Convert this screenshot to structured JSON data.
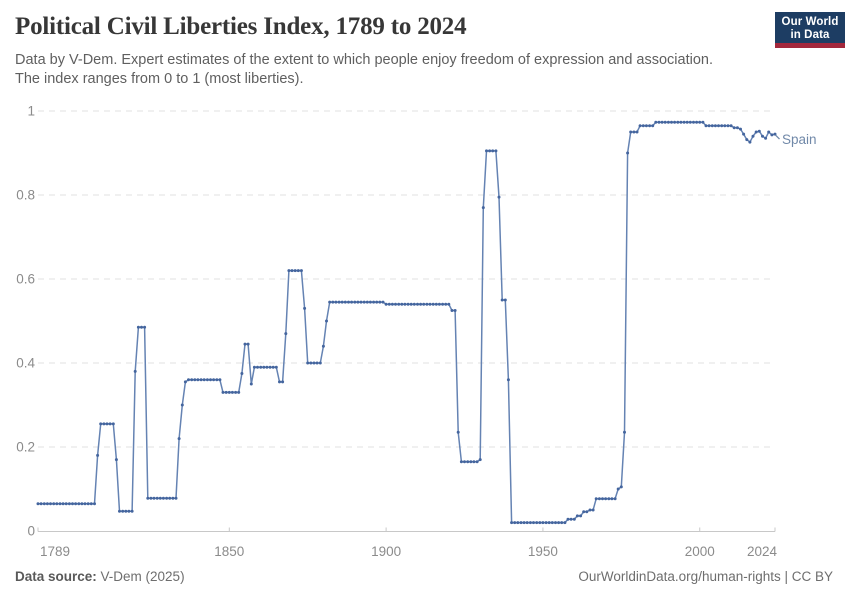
{
  "header": {
    "title": "Political Civil Liberties Index, 1789 to 2024",
    "subtitle_line1": "Data by V-Dem. Expert estimates of the extent to which people enjoy freedom of expression and association.",
    "subtitle_line2": "The index ranges from 0 to 1 (most liberties).",
    "logo_line1": "Our World",
    "logo_line2": "in Data",
    "logo_bg_color": "#1d3d63",
    "logo_stripe_color": "#a3273c"
  },
  "chart_data": {
    "type": "line",
    "title": "Political Civil Liberties Index, 1789 to 2024",
    "series_label": "Spain",
    "start_year": 1789,
    "end_year": 2024,
    "xlim": [
      1789,
      2024
    ],
    "ylim": [
      0,
      1
    ],
    "x_tick_years": [
      1789,
      1850,
      1900,
      1950,
      2000,
      2024
    ],
    "x_tick_labels": [
      "1789",
      "1850",
      "1900",
      "1950",
      "2000",
      "2024"
    ],
    "y_tick_values": [
      0,
      0.2,
      0.4,
      0.6,
      0.8,
      1
    ],
    "y_tick_labels": [
      "0",
      "0.2",
      "0.4",
      "0.6",
      "0.8",
      "1"
    ],
    "grid": "horizontal-dashed",
    "legend_position": "end-of-line",
    "line_color": "#6583b3",
    "marker_color": "#44659e",
    "label_color": "#7189a9",
    "values": [
      0.065,
      0.065,
      0.065,
      0.065,
      0.065,
      0.065,
      0.065,
      0.065,
      0.065,
      0.065,
      0.065,
      0.065,
      0.065,
      0.065,
      0.065,
      0.065,
      0.065,
      0.065,
      0.065,
      0.18,
      0.255,
      0.255,
      0.255,
      0.255,
      0.255,
      0.17,
      0.047,
      0.047,
      0.047,
      0.047,
      0.047,
      0.38,
      0.485,
      0.485,
      0.485,
      0.078,
      0.078,
      0.078,
      0.078,
      0.078,
      0.078,
      0.078,
      0.078,
      0.078,
      0.078,
      0.22,
      0.3,
      0.355,
      0.36,
      0.36,
      0.36,
      0.36,
      0.36,
      0.36,
      0.36,
      0.36,
      0.36,
      0.36,
      0.36,
      0.33,
      0.33,
      0.33,
      0.33,
      0.33,
      0.33,
      0.375,
      0.445,
      0.445,
      0.35,
      0.39,
      0.39,
      0.39,
      0.39,
      0.39,
      0.39,
      0.39,
      0.39,
      0.355,
      0.355,
      0.47,
      0.62,
      0.62,
      0.62,
      0.62,
      0.62,
      0.53,
      0.4,
      0.4,
      0.4,
      0.4,
      0.4,
      0.44,
      0.5,
      0.545,
      0.545,
      0.545,
      0.545,
      0.545,
      0.545,
      0.545,
      0.545,
      0.545,
      0.545,
      0.545,
      0.545,
      0.545,
      0.545,
      0.545,
      0.545,
      0.545,
      0.545,
      0.54,
      0.54,
      0.54,
      0.54,
      0.54,
      0.54,
      0.54,
      0.54,
      0.54,
      0.54,
      0.54,
      0.54,
      0.54,
      0.54,
      0.54,
      0.54,
      0.54,
      0.54,
      0.54,
      0.54,
      0.54,
      0.525,
      0.525,
      0.235,
      0.165,
      0.165,
      0.165,
      0.165,
      0.165,
      0.165,
      0.17,
      0.77,
      0.905,
      0.905,
      0.905,
      0.905,
      0.795,
      0.55,
      0.55,
      0.36,
      0.02,
      0.02,
      0.02,
      0.02,
      0.02,
      0.02,
      0.02,
      0.02,
      0.02,
      0.02,
      0.02,
      0.02,
      0.02,
      0.02,
      0.02,
      0.02,
      0.02,
      0.02,
      0.028,
      0.028,
      0.028,
      0.036,
      0.036,
      0.046,
      0.046,
      0.05,
      0.05,
      0.077,
      0.077,
      0.077,
      0.077,
      0.077,
      0.077,
      0.077,
      0.1,
      0.105,
      0.235,
      0.9,
      0.95,
      0.95,
      0.95,
      0.965,
      0.965,
      0.965,
      0.965,
      0.965,
      0.973,
      0.973,
      0.973,
      0.973,
      0.973,
      0.973,
      0.973,
      0.973,
      0.973,
      0.973,
      0.973,
      0.973,
      0.973,
      0.973,
      0.973,
      0.973,
      0.965,
      0.965,
      0.965,
      0.965,
      0.965,
      0.965,
      0.965,
      0.965,
      0.965,
      0.96,
      0.96,
      0.957,
      0.945,
      0.932,
      0.926,
      0.94,
      0.95,
      0.952,
      0.94,
      0.935,
      0.95,
      0.943,
      0.945
    ]
  },
  "footer": {
    "source_label": "Data source:",
    "source_value": " V-Dem (2025)",
    "rights": "OurWorldinData.org/human-rights | CC BY"
  }
}
